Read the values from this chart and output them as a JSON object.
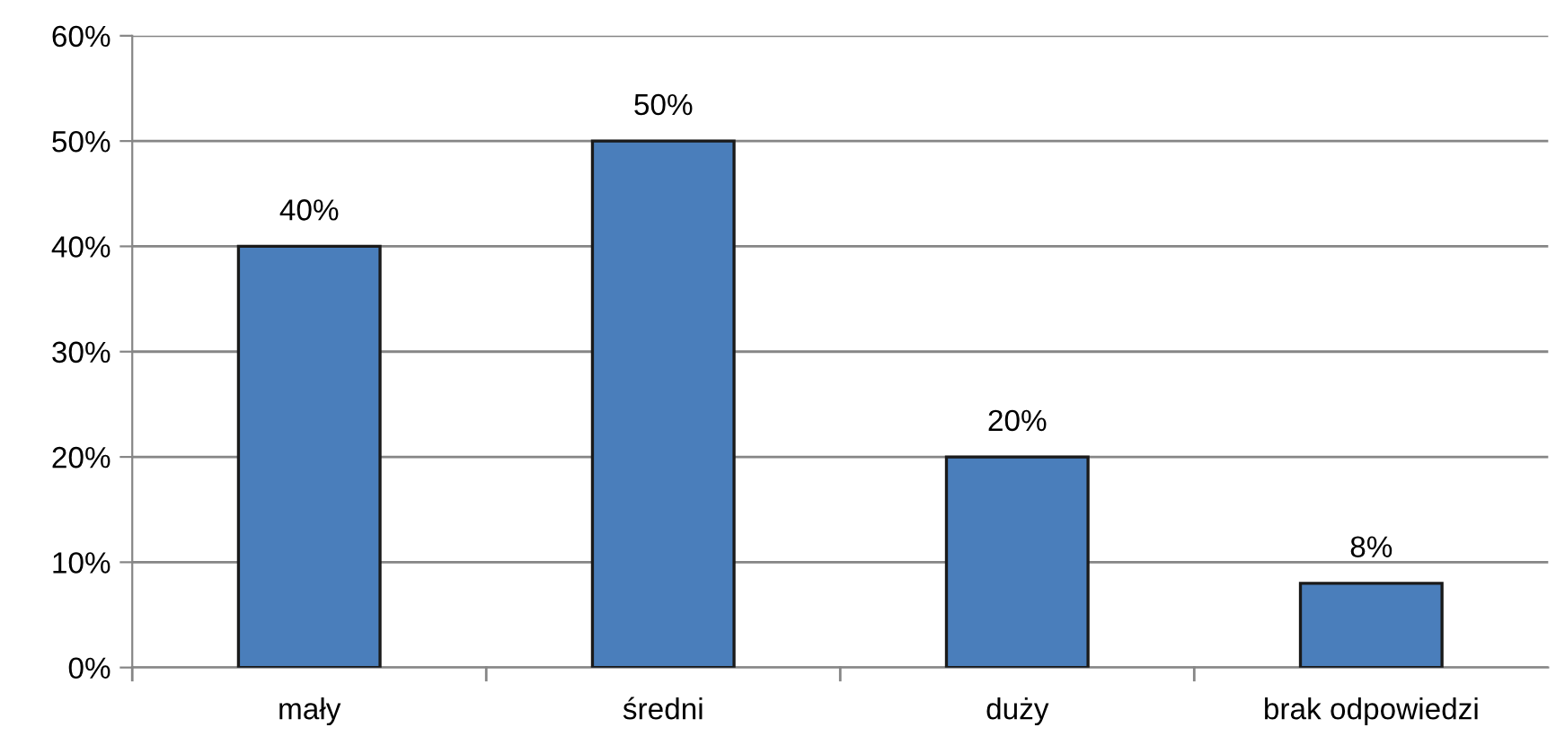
{
  "chart_data": {
    "type": "bar",
    "categories": [
      "mały",
      "średni",
      "duży",
      "brak odpowiedzi"
    ],
    "values": [
      40,
      50,
      20,
      8
    ],
    "color": "#4a7ebb",
    "value_labels": [
      "40%",
      "50%",
      "20%",
      "8%"
    ],
    "ylim": [
      0,
      60
    ],
    "yticks": [
      {
        "value": 0,
        "label": "0%"
      },
      {
        "value": 10,
        "label": "10%"
      },
      {
        "value": 20,
        "label": "20%"
      },
      {
        "value": 30,
        "label": "30%"
      },
      {
        "value": 40,
        "label": "40%"
      },
      {
        "value": 50,
        "label": "50%"
      },
      {
        "value": 60,
        "label": "60%"
      }
    ],
    "grid": "y"
  }
}
